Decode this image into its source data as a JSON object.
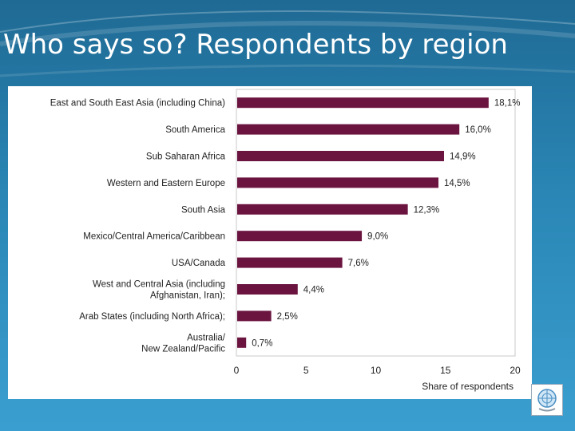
{
  "slide": {
    "title": "Who says so? Respondents by region"
  },
  "chart_data": {
    "type": "bar",
    "orientation": "horizontal",
    "title": "",
    "xlabel": "Share of respondents",
    "ylabel": "",
    "xlim": [
      0,
      20
    ],
    "x_ticks": [
      "0",
      "5",
      "10",
      "15",
      "20"
    ],
    "grid": false,
    "bar_color": "#6b1440",
    "categories": [
      "East and South East Asia (including China)",
      "South America",
      "Sub Saharan Africa",
      "Western and Eastern Europe",
      "South Asia",
      "Mexico/Central America/Caribbean",
      "USA/Canada",
      "West and Central Asia (including Afghanistan, Iran);",
      "Arab States (including North Africa);",
      "Australia/ New Zealand/Pacific"
    ],
    "category_lines": [
      [
        "East and South East Asia (including China)"
      ],
      [
        "South America"
      ],
      [
        "Sub Saharan Africa"
      ],
      [
        "Western and Eastern Europe"
      ],
      [
        "South Asia"
      ],
      [
        "Mexico/Central America/Caribbean"
      ],
      [
        "USA/Canada"
      ],
      [
        "West and Central Asia (including",
        "Afghanistan, Iran);"
      ],
      [
        "Arab States (including North Africa);"
      ],
      [
        "Australia/",
        "New Zealand/Pacific"
      ]
    ],
    "values": [
      18.1,
      16.0,
      14.9,
      14.5,
      12.3,
      9.0,
      7.6,
      4.4,
      2.5,
      0.7
    ],
    "value_labels": [
      "18,1%",
      "16,0%",
      "14,9%",
      "14,5%",
      "12,3%",
      "9,0%",
      "7,6%",
      "4,4%",
      "2,5%",
      "0,7%"
    ]
  },
  "logo": {
    "icon": "un-emblem-globe-icon"
  }
}
